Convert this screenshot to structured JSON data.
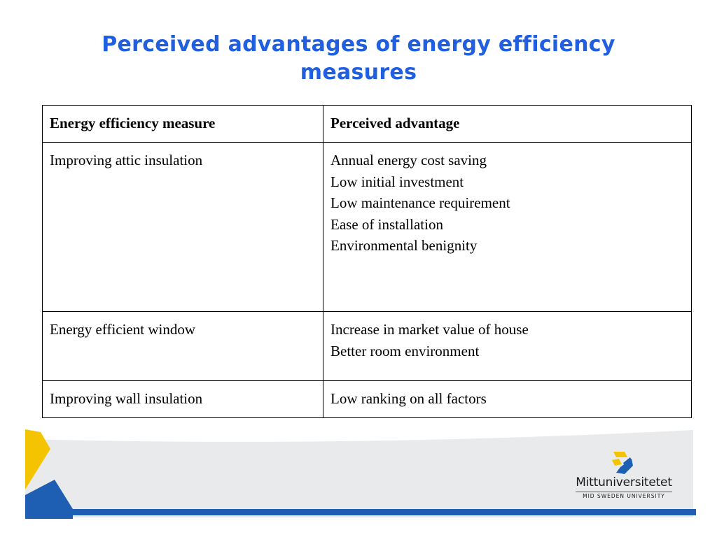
{
  "slide": {
    "title_line1": "Perceived advantages of energy efficiency",
    "title_line2": "measures"
  },
  "table": {
    "headers": [
      "Energy efficiency measure",
      "Perceived advantage"
    ],
    "rows": [
      {
        "measure": "Improving attic insulation",
        "advantages": [
          "Annual energy cost saving",
          "Low initial investment",
          "Low maintenance requirement",
          "Ease of installation",
          "Environmental benignity"
        ]
      },
      {
        "measure": "Energy efficient window",
        "advantages": [
          "Increase in market value of house",
          "Better room environment"
        ]
      },
      {
        "measure": "Improving wall insulation",
        "advantages": [
          "Low ranking on all factors"
        ]
      }
    ]
  },
  "logo": {
    "name": "Mittuniversitetet",
    "subtitle": "MID SWEDEN UNIVERSITY",
    "icon": "mid-sweden-university-emblem"
  },
  "colors": {
    "title": "#1f5fe0",
    "accent_yellow": "#f5c400",
    "accent_blue": "#1e5fb4"
  }
}
